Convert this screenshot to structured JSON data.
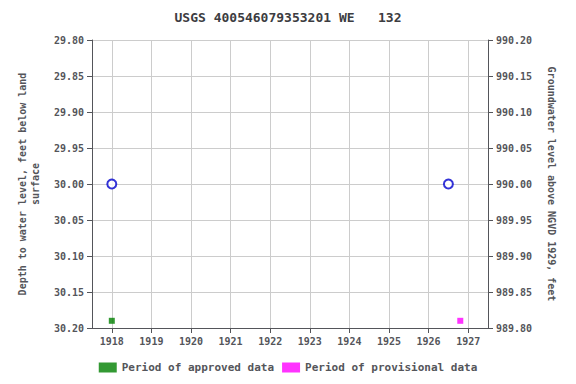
{
  "chart_data": {
    "type": "scatter",
    "title": "USGS 400546079353201 WE   132",
    "ylabel": "Depth to water level, feet below land\nsurface",
    "y2label": "Groundwater level above NGVD 1929, feet",
    "xlim": [
      1917.5,
      1927.5
    ],
    "xticks": [
      1918,
      1919,
      1920,
      1921,
      1922,
      1923,
      1924,
      1925,
      1926,
      1927
    ],
    "ylim": [
      30.2,
      29.8
    ],
    "yticks": [
      {
        "value": 29.8,
        "label": "29.80"
      },
      {
        "value": 29.85,
        "label": "29.85"
      },
      {
        "value": 29.9,
        "label": "29.90"
      },
      {
        "value": 29.95,
        "label": "29.95"
      },
      {
        "value": 30.0,
        "label": "30.00"
      },
      {
        "value": 30.05,
        "label": "30.05"
      },
      {
        "value": 30.1,
        "label": "30.10"
      },
      {
        "value": 30.15,
        "label": "30.15"
      },
      {
        "value": 30.2,
        "label": "30.20"
      }
    ],
    "y2lim": [
      989.8,
      990.2
    ],
    "y2ticks": [
      {
        "value": 990.2,
        "label": "990.20"
      },
      {
        "value": 990.15,
        "label": "990.15"
      },
      {
        "value": 990.1,
        "label": "990.10"
      },
      {
        "value": 990.05,
        "label": "990.05"
      },
      {
        "value": 990.0,
        "label": "990.00"
      },
      {
        "value": 989.95,
        "label": "989.95"
      },
      {
        "value": 989.9,
        "label": "989.90"
      },
      {
        "value": 989.85,
        "label": "989.85"
      },
      {
        "value": 989.8,
        "label": "989.80"
      }
    ],
    "grid": true,
    "legend": "bottom",
    "series": [
      {
        "name": "Period of approved data",
        "color": "#008000",
        "marker": "square",
        "x": [
          1918.0
        ],
        "values": [
          30.19
        ]
      },
      {
        "color": "#0000cd",
        "marker": "open_circle",
        "x": [
          1918.0
        ],
        "values": [
          30.0
        ]
      },
      {
        "name": "Period of provisional data",
        "color": "#ff00ff",
        "marker": "square",
        "x": [
          1926.8
        ],
        "values": [
          30.19
        ]
      },
      {
        "color": "#0000cd",
        "marker": "open_circle",
        "x": [
          1926.5
        ],
        "values": [
          30.0
        ]
      }
    ]
  }
}
